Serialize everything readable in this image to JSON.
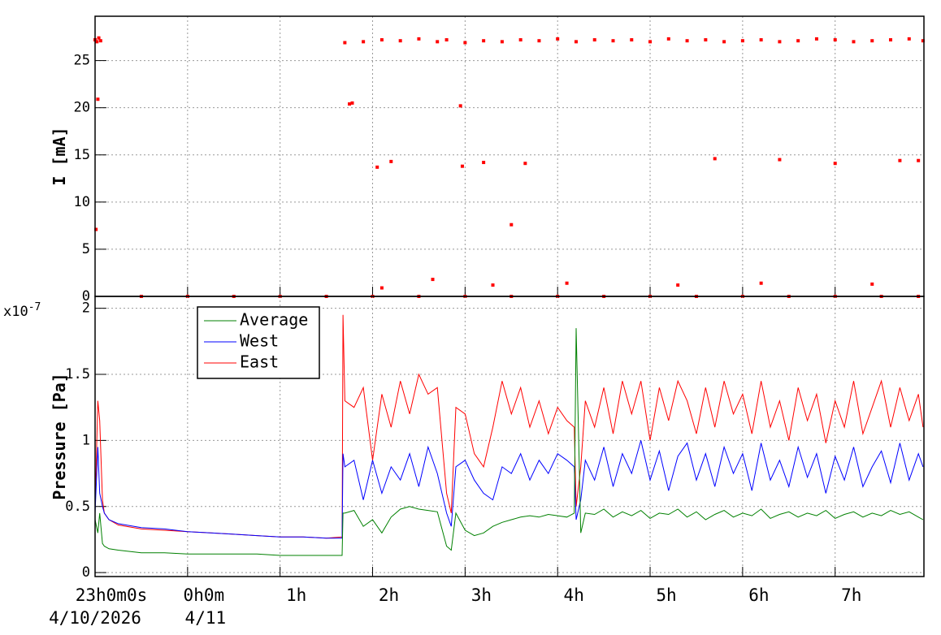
{
  "chart_data": [
    {
      "type": "scatter",
      "y_label": "I [mA]",
      "color": "#ff0000",
      "grid": true,
      "xlim": [
        -1,
        7.96
      ],
      "ylim": [
        0,
        29.7
      ],
      "xticks": [
        -1,
        0,
        1,
        2,
        3,
        4,
        5,
        6,
        7
      ],
      "yticks": [
        0,
        5,
        10,
        15,
        20,
        25
      ],
      "x": [
        -1,
        -0.98,
        -0.96,
        -0.94,
        -0.99,
        -0.97,
        -0.5,
        0,
        0.5,
        1,
        1.5,
        2,
        2.5,
        3,
        3.5,
        4,
        4.5,
        5,
        5.5,
        6,
        6.5,
        7,
        7.5,
        7.9,
        1.7,
        1.9,
        2.1,
        2.3,
        2.5,
        2.7,
        2.8,
        3.0,
        3.2,
        3.4,
        3.6,
        3.8,
        4.0,
        4.2,
        4.4,
        4.6,
        4.8,
        5.0,
        5.2,
        5.4,
        5.6,
        5.8,
        6.0,
        6.2,
        6.4,
        6.6,
        6.8,
        7.0,
        7.2,
        7.4,
        7.6,
        7.8,
        7.95,
        1.75,
        1.78,
        2.05,
        2.2,
        2.95,
        2.97,
        3.2,
        3.5,
        3.65,
        5.7,
        6.4,
        7.0,
        7.7,
        2.65,
        3.3,
        4.1,
        5.3,
        6.2,
        7.4,
        2.1,
        7.9
      ],
      "values": [
        27.2,
        27.0,
        27.4,
        27.1,
        7.1,
        20.9,
        0,
        0,
        0,
        0,
        0,
        0,
        0,
        0,
        0,
        0,
        0,
        0,
        0,
        0,
        0,
        0,
        0,
        0,
        26.9,
        27.0,
        27.2,
        27.1,
        27.3,
        27.0,
        27.2,
        26.9,
        27.1,
        27.0,
        27.2,
        27.1,
        27.3,
        27.0,
        27.2,
        27.1,
        27.2,
        27.0,
        27.3,
        27.1,
        27.2,
        27.0,
        27.1,
        27.2,
        27.0,
        27.1,
        27.3,
        27.2,
        27.0,
        27.1,
        27.2,
        27.3,
        27.1,
        20.4,
        20.5,
        13.7,
        14.3,
        20.2,
        13.8,
        14.2,
        7.6,
        14.1,
        14.6,
        14.5,
        14.1,
        14.4,
        1.8,
        1.2,
        1.4,
        1.2,
        1.4,
        1.3,
        0.9,
        14.4
      ]
    },
    {
      "type": "line",
      "y_label": "Pressure [Pa]",
      "y_multiplier": {
        "base": "x10",
        "exponent": "-7"
      },
      "grid": true,
      "legend": "top-left",
      "xlim": [
        -1,
        7.96
      ],
      "ylim": [
        -0.03,
        2.09
      ],
      "yticks": [
        0,
        0.5,
        1,
        1.5,
        2
      ],
      "xticks": [
        {
          "value": -1,
          "label": "23h0m0s"
        },
        {
          "value": 0,
          "label": "0h0m"
        },
        {
          "value": 1,
          "label": "1h"
        },
        {
          "value": 2,
          "label": "2h"
        },
        {
          "value": 3,
          "label": "3h"
        },
        {
          "value": 4,
          "label": "4h"
        },
        {
          "value": 5,
          "label": "5h"
        },
        {
          "value": 6,
          "label": "6h"
        },
        {
          "value": 7,
          "label": "7h"
        }
      ],
      "date_labels": [
        {
          "value": -1,
          "label": "4/10/2026"
        },
        {
          "value": 0,
          "label": "4/11"
        }
      ],
      "x": [
        -1,
        -0.97,
        -0.95,
        -0.92,
        -0.9,
        -0.85,
        -0.75,
        -0.5,
        -0.25,
        0,
        0.25,
        0.5,
        0.75,
        1,
        1.25,
        1.5,
        1.67,
        1.68,
        1.7,
        1.8,
        1.9,
        2.0,
        2.1,
        2.2,
        2.3,
        2.4,
        2.5,
        2.6,
        2.7,
        2.8,
        2.85,
        2.9,
        3.0,
        3.1,
        3.2,
        3.3,
        3.4,
        3.5,
        3.6,
        3.7,
        3.8,
        3.9,
        4.0,
        4.1,
        4.18,
        4.2,
        4.25,
        4.3,
        4.4,
        4.5,
        4.6,
        4.7,
        4.8,
        4.9,
        5.0,
        5.1,
        5.2,
        5.3,
        5.4,
        5.5,
        5.6,
        5.7,
        5.8,
        5.9,
        6.0,
        6.1,
        6.2,
        6.3,
        6.4,
        6.5,
        6.6,
        6.7,
        6.8,
        6.9,
        7.0,
        7.1,
        7.2,
        7.3,
        7.4,
        7.5,
        7.6,
        7.7,
        7.8,
        7.9,
        7.95
      ],
      "series": [
        {
          "name": "Average",
          "color": "#008000",
          "values": [
            0.4,
            0.3,
            0.45,
            0.22,
            0.2,
            0.18,
            0.17,
            0.15,
            0.15,
            0.14,
            0.14,
            0.14,
            0.14,
            0.13,
            0.13,
            0.13,
            0.13,
            0.45,
            0.45,
            0.47,
            0.35,
            0.4,
            0.3,
            0.42,
            0.48,
            0.5,
            0.48,
            0.47,
            0.46,
            0.2,
            0.17,
            0.45,
            0.32,
            0.28,
            0.3,
            0.35,
            0.38,
            0.4,
            0.42,
            0.43,
            0.42,
            0.44,
            0.43,
            0.42,
            0.45,
            1.85,
            0.3,
            0.45,
            0.44,
            0.48,
            0.42,
            0.46,
            0.43,
            0.47,
            0.41,
            0.45,
            0.44,
            0.48,
            0.42,
            0.46,
            0.4,
            0.44,
            0.47,
            0.42,
            0.45,
            0.43,
            0.48,
            0.41,
            0.44,
            0.46,
            0.42,
            0.45,
            0.43,
            0.47,
            0.41,
            0.44,
            0.46,
            0.42,
            0.45,
            0.43,
            0.47,
            0.44,
            0.46,
            0.42,
            0.4
          ]
        },
        {
          "name": "West",
          "color": "#0000ff",
          "values": [
            0.45,
            0.95,
            0.6,
            0.5,
            0.45,
            0.4,
            0.37,
            0.34,
            0.33,
            0.31,
            0.3,
            0.29,
            0.28,
            0.27,
            0.27,
            0.26,
            0.26,
            0.9,
            0.8,
            0.85,
            0.55,
            0.85,
            0.6,
            0.8,
            0.7,
            0.9,
            0.65,
            0.95,
            0.75,
            0.45,
            0.35,
            0.8,
            0.85,
            0.7,
            0.6,
            0.55,
            0.8,
            0.75,
            0.9,
            0.7,
            0.85,
            0.75,
            0.9,
            0.85,
            0.8,
            0.4,
            0.55,
            0.85,
            0.7,
            0.95,
            0.65,
            0.9,
            0.75,
            1.0,
            0.7,
            0.92,
            0.62,
            0.88,
            0.98,
            0.7,
            0.9,
            0.65,
            0.95,
            0.75,
            0.9,
            0.62,
            0.98,
            0.7,
            0.85,
            0.65,
            0.95,
            0.72,
            0.9,
            0.6,
            0.88,
            0.7,
            0.95,
            0.65,
            0.8,
            0.92,
            0.68,
            0.98,
            0.7,
            0.9,
            0.8
          ]
        },
        {
          "name": "East",
          "color": "#ff0000",
          "values": [
            0.5,
            1.3,
            1.15,
            0.55,
            0.45,
            0.4,
            0.36,
            0.33,
            0.32,
            0.31,
            0.3,
            0.29,
            0.28,
            0.27,
            0.27,
            0.26,
            0.27,
            1.95,
            1.3,
            1.25,
            1.4,
            0.85,
            1.35,
            1.1,
            1.45,
            1.2,
            1.5,
            1.35,
            1.4,
            0.6,
            0.45,
            1.25,
            1.2,
            0.9,
            0.8,
            1.1,
            1.45,
            1.2,
            1.4,
            1.1,
            1.3,
            1.05,
            1.25,
            1.15,
            1.1,
            0.5,
            0.8,
            1.3,
            1.1,
            1.4,
            1.05,
            1.45,
            1.2,
            1.45,
            1.0,
            1.4,
            1.15,
            1.45,
            1.3,
            1.05,
            1.4,
            1.1,
            1.45,
            1.2,
            1.35,
            1.05,
            1.45,
            1.1,
            1.3,
            1.0,
            1.4,
            1.15,
            1.35,
            0.98,
            1.3,
            1.1,
            1.45,
            1.05,
            1.25,
            1.45,
            1.1,
            1.4,
            1.15,
            1.35,
            1.1
          ]
        }
      ]
    }
  ]
}
